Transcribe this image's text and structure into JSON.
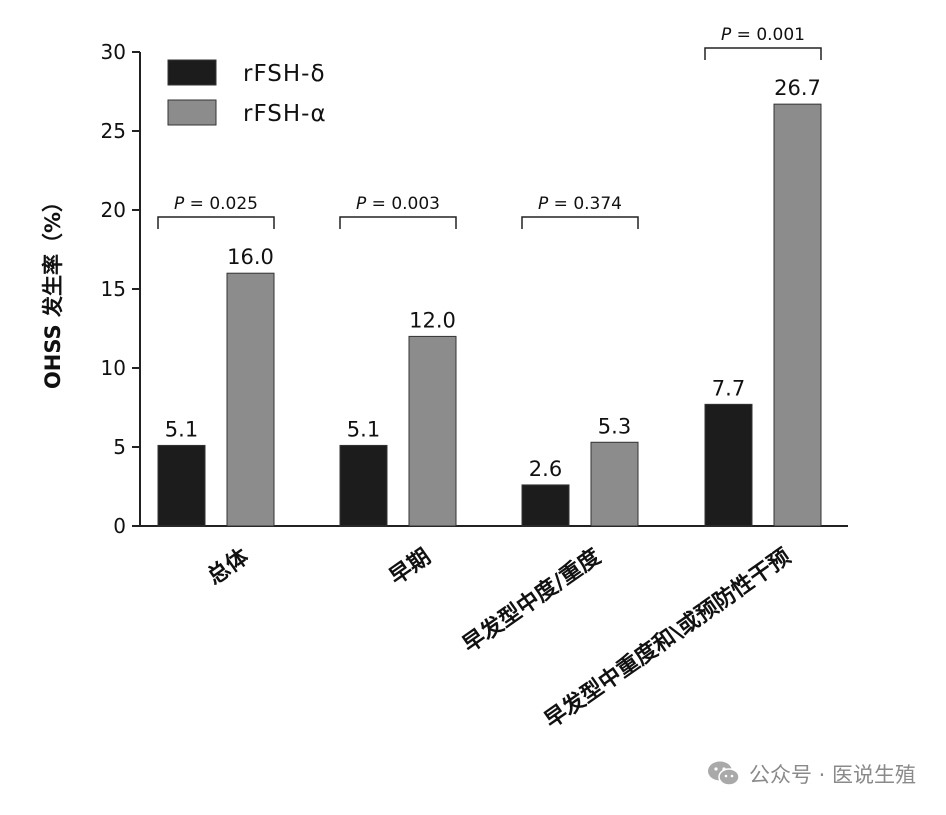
{
  "chart_data": {
    "type": "bar",
    "ylabel": "OHSS 发生率（%）",
    "ylim": [
      0,
      30
    ],
    "yticks": [
      0,
      5,
      10,
      15,
      20,
      25,
      30
    ],
    "categories": [
      "总体",
      "早期",
      "早发型中度/重度",
      "早发型中重度和\\或预防性干预"
    ],
    "series": [
      {
        "name": "rFSH-δ",
        "color": "#1c1c1c",
        "values": [
          5.1,
          5.1,
          2.6,
          7.7
        ],
        "labels": [
          "5.1",
          "5.1",
          "2.6",
          "7.7"
        ]
      },
      {
        "name": "rFSH-α",
        "color": "#8c8c8c",
        "values": [
          16.0,
          12.0,
          5.3,
          26.7
        ],
        "labels": [
          "16.0",
          "12.0",
          "5.3",
          "26.7"
        ]
      }
    ],
    "p_values": [
      "P = 0.025",
      "P = 0.003",
      "P = 0.374",
      "P = 0.001"
    ],
    "legend_position": "top-left",
    "grid": false
  },
  "watermark": {
    "text": "公众号 · 医说生殖",
    "icon": "wechat-icon"
  }
}
